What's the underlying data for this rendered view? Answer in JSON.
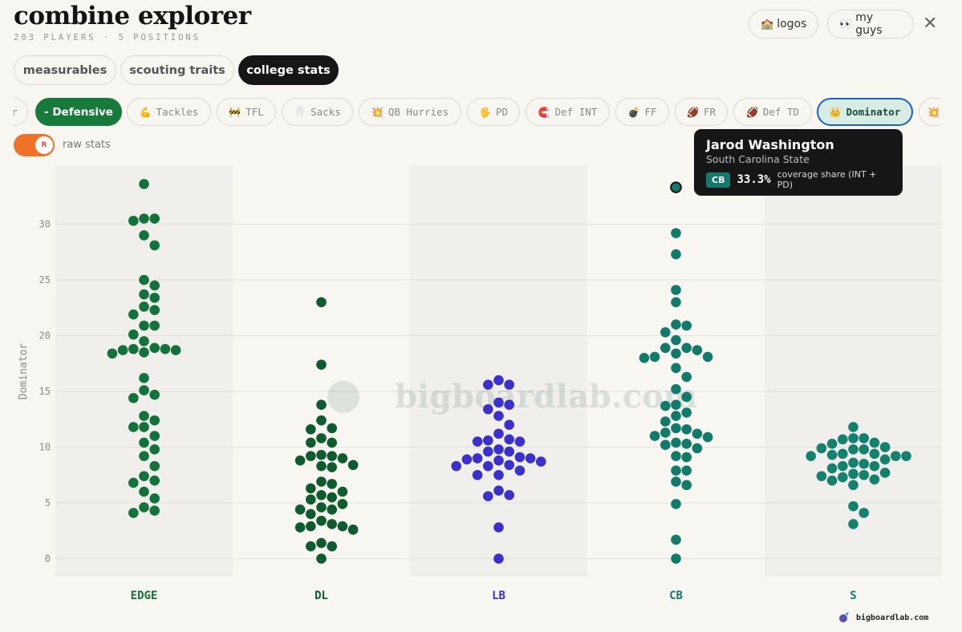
{
  "app": {
    "title": "combine explorer",
    "subtitle": "203 PLAYERS · 5 POSITIONS"
  },
  "top_buttons": {
    "logos_icon": "🏫",
    "logos_label": "logos",
    "myguys_icon": "👀",
    "myguys_label": "my guys",
    "close_glyph": "✕"
  },
  "tabs": {
    "measurables": "measurables",
    "scouting": "scouting traits",
    "college": "college stats",
    "active": "college stats"
  },
  "stat_chips": {
    "partial_left": "r",
    "group": "- Defensive",
    "tackles": {
      "icon": "💪",
      "label": "Tackles"
    },
    "tfl": {
      "icon": "🚧",
      "label": "TFL"
    },
    "sacks": {
      "icon": "🦷",
      "label": "Sacks"
    },
    "qb_hurries": {
      "icon": "💥",
      "label": "QB Hurries"
    },
    "pd": {
      "icon": "🖐",
      "label": "PD"
    },
    "def_int": {
      "icon": "🧲",
      "label": "Def INT"
    },
    "ff": {
      "icon": "💣",
      "label": "FF"
    },
    "fr": {
      "icon": "🏈",
      "label": "FR"
    },
    "def_td": {
      "icon": "🏈",
      "label": "Def TD"
    },
    "dominator": {
      "icon": "👑",
      "label": "Dominator"
    },
    "partial_right_icon": "💥"
  },
  "toggle": {
    "knob_letter": "R",
    "label": "raw stats",
    "on": true
  },
  "tooltip": {
    "name": "Jarod Washington",
    "school": "South Carolina State",
    "position": "CB",
    "value": "33.3%",
    "description": "coverage share (INT + PD)"
  },
  "watermark": "bigboardlab.com",
  "brand": {
    "text": "bigboardlab.com"
  },
  "colors": {
    "EDGE": "#13723b",
    "DL": "#0f5a2f",
    "LB": "#3b30c9",
    "CB": "#127a6b",
    "S": "#14806e",
    "group_chip": "#187a3a",
    "active_border": "#1e5fc4",
    "toggle": "#f07228"
  },
  "chart_data": {
    "type": "scatter",
    "style": "beeswarm",
    "ylabel": "Dominator",
    "yticks": [
      0,
      5,
      10,
      15,
      20,
      25,
      30
    ],
    "ylim": [
      -1.5,
      35
    ],
    "categories": [
      "EDGE",
      "DL",
      "LB",
      "CB",
      "S"
    ],
    "highlight": {
      "category": "CB",
      "value": 33.3
    },
    "series": [
      {
        "name": "EDGE",
        "values": [
          33.6,
          30.5,
          30.3,
          30.5,
          29.0,
          28.1,
          25.0,
          24.5,
          23.7,
          23.4,
          22.6,
          22.3,
          21.9,
          20.9,
          20.9,
          20.1,
          19.5,
          18.9,
          18.8,
          18.7,
          18.4,
          18.5,
          18.7,
          18.8,
          16.2,
          15.1,
          14.4,
          14.7,
          12.8,
          12.4,
          11.8,
          11.8,
          11.0,
          10.4,
          9.8,
          9.2,
          8.3,
          7.4,
          7.0,
          6.8,
          6.0,
          5.4,
          4.6,
          4.3,
          4.1
        ]
      },
      {
        "name": "DL",
        "values": [
          23.0,
          17.4,
          13.8,
          12.4,
          11.7,
          11.6,
          10.8,
          10.4,
          10.4,
          9.3,
          9.2,
          9.2,
          9.0,
          8.8,
          8.4,
          8.3,
          8.2,
          6.9,
          6.7,
          6.3,
          6.0,
          5.7,
          5.5,
          5.3,
          4.9,
          4.6,
          4.4,
          4.4,
          4.0,
          3.4,
          3.1,
          2.9,
          2.9,
          2.8,
          2.6,
          1.4,
          1.1,
          1.1,
          0.0
        ]
      },
      {
        "name": "LB",
        "values": [
          16.0,
          15.6,
          15.6,
          14.0,
          13.8,
          13.4,
          12.8,
          12.0,
          11.2,
          10.7,
          10.6,
          10.5,
          10.5,
          9.8,
          9.6,
          9.6,
          9.1,
          9.0,
          9.0,
          8.9,
          8.8,
          8.7,
          8.4,
          8.3,
          8.3,
          7.9,
          7.5,
          7.5,
          6.1,
          5.7,
          5.6,
          2.8,
          0.0
        ]
      },
      {
        "name": "CB",
        "values": [
          33.3,
          29.2,
          27.3,
          24.1,
          23.0,
          21.0,
          20.9,
          20.3,
          19.6,
          18.9,
          18.9,
          18.7,
          18.4,
          18.1,
          18.1,
          18.0,
          17.1,
          16.3,
          15.2,
          14.5,
          13.8,
          13.7,
          13.1,
          12.8,
          12.3,
          11.7,
          11.6,
          11.3,
          11.2,
          11.0,
          10.9,
          10.4,
          10.3,
          10.2,
          9.9,
          9.2,
          9.1,
          7.9,
          7.9,
          6.9,
          6.6,
          4.9,
          1.7,
          0.0
        ]
      },
      {
        "name": "S",
        "values": [
          11.8,
          10.8,
          10.7,
          10.8,
          10.4,
          10.3,
          10.0,
          9.9,
          9.8,
          9.8,
          9.4,
          9.4,
          9.3,
          9.2,
          9.2,
          9.2,
          8.9,
          8.6,
          8.5,
          8.3,
          8.3,
          8.1,
          7.7,
          7.6,
          7.5,
          7.4,
          7.3,
          7.1,
          7.0,
          6.6,
          4.7,
          4.1,
          3.1
        ]
      }
    ]
  }
}
